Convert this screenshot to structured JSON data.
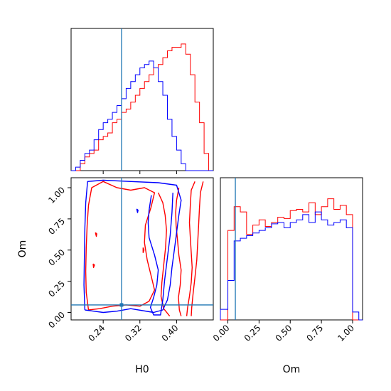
{
  "chart_data": [
    {
      "type": "histogram",
      "panel": "H0 marginal",
      "xlim": [
        0.17,
        0.48
      ],
      "truth": 0.28,
      "bin_edges": [
        0.17,
        0.18,
        0.19,
        0.2,
        0.21,
        0.22,
        0.23,
        0.24,
        0.25,
        0.26,
        0.27,
        0.28,
        0.29,
        0.3,
        0.31,
        0.32,
        0.33,
        0.34,
        0.35,
        0.36,
        0.37,
        0.38,
        0.39,
        0.4,
        0.41,
        0.42,
        0.43,
        0.44,
        0.45,
        0.46,
        0.47,
        0.48
      ],
      "series": [
        {
          "color": "#ff0000",
          "values": [
            0,
            0,
            2,
            4,
            5,
            6,
            9,
            10,
            11,
            14,
            15,
            17,
            18,
            20,
            22,
            24,
            26,
            28,
            30,
            31,
            33,
            35,
            36,
            36,
            37,
            34,
            28,
            20,
            14,
            5,
            0
          ]
        },
        {
          "color": "#0000ff",
          "values": [
            0,
            1,
            3,
            5,
            6,
            9,
            12,
            14,
            15,
            17,
            19,
            21,
            24,
            26,
            28,
            30,
            31,
            32,
            30,
            26,
            22,
            15,
            10,
            6,
            2,
            0,
            0,
            0,
            0,
            0,
            0
          ]
        }
      ]
    },
    {
      "type": "contour",
      "panel": "Om vs H0",
      "xlabel": "H0",
      "ylabel": "Om",
      "xlim": [
        0.17,
        0.48
      ],
      "ylim": [
        -0.06,
        1.08
      ],
      "xticks": [
        "0.24",
        "0.32",
        "0.40"
      ],
      "xtick_values": [
        0.24,
        0.32,
        0.4
      ],
      "yticks": [
        "0.00",
        "0.25",
        "0.50",
        "0.75",
        "1.00"
      ],
      "ytick_values": [
        0,
        0.25,
        0.5,
        0.75,
        1.0
      ],
      "truth": {
        "x": 0.28,
        "y": 0.06
      },
      "contours": [
        {
          "color": "#ff0000",
          "points": [
            [
              0.36,
              0.96
            ],
            [
              0.37,
              0.88
            ],
            [
              0.375,
              0.78
            ],
            [
              0.378,
              0.66
            ],
            [
              0.376,
              0.52
            ],
            [
              0.372,
              0.38
            ],
            [
              0.368,
              0.24
            ],
            [
              0.366,
              0.13
            ],
            [
              0.372,
              0.03
            ],
            [
              0.385,
              -0.03
            ]
          ]
        },
        {
          "color": "#ff0000",
          "points": [
            [
              0.405,
              1.0
            ],
            [
              0.4,
              0.9
            ],
            [
              0.398,
              0.8
            ],
            [
              0.399,
              0.7
            ],
            [
              0.402,
              0.58
            ],
            [
              0.405,
              0.46
            ],
            [
              0.41,
              0.34
            ],
            [
              0.408,
              0.22
            ],
            [
              0.404,
              0.12
            ],
            [
              0.406,
              0.02
            ],
            [
              0.41,
              -0.03
            ]
          ]
        },
        {
          "color": "#ff0000",
          "points": [
            [
              0.44,
              1.05
            ],
            [
              0.432,
              0.98
            ],
            [
              0.43,
              0.86
            ],
            [
              0.428,
              0.72
            ],
            [
              0.43,
              0.6
            ],
            [
              0.432,
              0.48
            ],
            [
              0.434,
              0.36
            ],
            [
              0.432,
              0.24
            ],
            [
              0.428,
              0.13
            ],
            [
              0.424,
              0.04
            ],
            [
              0.422,
              -0.03
            ]
          ]
        },
        {
          "color": "#ff0000",
          "points": [
            [
              0.458,
              1.05
            ],
            [
              0.452,
              0.96
            ],
            [
              0.45,
              0.84
            ],
            [
              0.448,
              0.7
            ],
            [
              0.446,
              0.56
            ],
            [
              0.444,
              0.42
            ],
            [
              0.44,
              0.28
            ],
            [
              0.436,
              0.15
            ],
            [
              0.433,
              0.04
            ],
            [
              0.432,
              -0.03
            ]
          ]
        },
        {
          "color": "#ff0000",
          "points": [
            [
              0.208,
              0.02
            ],
            [
              0.203,
              0.16
            ],
            [
              0.202,
              0.33
            ],
            [
              0.203,
              0.52
            ],
            [
              0.205,
              0.7
            ],
            [
              0.208,
              0.86
            ],
            [
              0.215,
              1.0
            ],
            [
              0.24,
              1.05
            ],
            [
              0.27,
              1.0
            ],
            [
              0.3,
              0.98
            ],
            [
              0.33,
              1.0
            ],
            [
              0.352,
              0.96
            ],
            [
              0.344,
              0.84
            ],
            [
              0.332,
              0.7
            ],
            [
              0.33,
              0.56
            ],
            [
              0.336,
              0.42
            ],
            [
              0.344,
              0.3
            ],
            [
              0.352,
              0.18
            ],
            [
              0.34,
              0.09
            ],
            [
              0.32,
              0.05
            ],
            [
              0.29,
              0.06
            ],
            [
              0.26,
              0.05
            ],
            [
              0.232,
              0.03
            ],
            [
              0.208,
              0.02
            ]
          ]
        },
        {
          "color": "#ff0000",
          "points": [
            [
              0.223,
              0.64
            ],
            [
              0.226,
              0.63
            ],
            [
              0.225,
              0.61
            ],
            [
              0.223,
              0.64
            ]
          ]
        },
        {
          "color": "#ff0000",
          "points": [
            [
              0.218,
              0.39
            ],
            [
              0.221,
              0.38
            ],
            [
              0.219,
              0.36
            ],
            [
              0.218,
              0.39
            ]
          ]
        },
        {
          "color": "#ff0000",
          "points": [
            [
              0.327,
              0.52
            ],
            [
              0.329,
              0.5
            ],
            [
              0.327,
              0.48
            ],
            [
              0.327,
              0.52
            ]
          ]
        },
        {
          "color": "#0000ff",
          "points": [
            [
              0.2,
              0.02
            ],
            [
              0.198,
              0.22
            ],
            [
              0.199,
              0.45
            ],
            [
              0.2,
              0.68
            ],
            [
              0.202,
              0.88
            ],
            [
              0.206,
              1.05
            ],
            [
              0.24,
              1.06
            ],
            [
              0.3,
              1.05
            ],
            [
              0.36,
              1.04
            ],
            [
              0.4,
              1.02
            ],
            [
              0.41,
              0.9
            ],
            [
              0.405,
              0.78
            ],
            [
              0.4,
              0.64
            ],
            [
              0.395,
              0.5
            ],
            [
              0.39,
              0.36
            ],
            [
              0.386,
              0.22
            ],
            [
              0.38,
              0.1
            ],
            [
              0.37,
              0.02
            ],
            [
              0.35,
              0.0
            ],
            [
              0.3,
              0.03
            ],
            [
              0.27,
              0.01
            ],
            [
              0.24,
              0.0
            ],
            [
              0.2,
              0.02
            ]
          ]
        },
        {
          "color": "#0000ff",
          "points": [
            [
              0.345,
              0.94
            ],
            [
              0.34,
              0.82
            ],
            [
              0.338,
              0.72
            ],
            [
              0.34,
              0.6
            ],
            [
              0.352,
              0.46
            ],
            [
              0.36,
              0.34
            ],
            [
              0.357,
              0.22
            ],
            [
              0.35,
              0.12
            ],
            [
              0.343,
              0.04
            ],
            [
              0.35,
              -0.02
            ],
            [
              0.365,
              -0.02
            ],
            [
              0.37,
              0.1
            ],
            [
              0.374,
              0.26
            ],
            [
              0.38,
              0.44
            ],
            [
              0.386,
              0.62
            ],
            [
              0.39,
              0.8
            ],
            [
              0.392,
              0.96
            ]
          ]
        },
        {
          "color": "#0000ff",
          "points": [
            [
              0.313,
              0.83
            ],
            [
              0.316,
              0.82
            ],
            [
              0.315,
              0.8
            ],
            [
              0.313,
              0.83
            ]
          ]
        }
      ]
    },
    {
      "type": "histogram",
      "panel": "Om marginal",
      "xlabel": "Om",
      "xlim": [
        -0.06,
        1.08
      ],
      "xticks": [
        "0.00",
        "0.25",
        "0.50",
        "0.75",
        "1.00"
      ],
      "xtick_values": [
        0,
        0.25,
        0.5,
        0.75,
        1.0
      ],
      "truth": 0.06,
      "bin_edges": [
        -0.06,
        0.0,
        0.05,
        0.1,
        0.15,
        0.2,
        0.25,
        0.3,
        0.35,
        0.4,
        0.45,
        0.5,
        0.55,
        0.6,
        0.65,
        0.7,
        0.75,
        0.8,
        0.85,
        0.9,
        0.95,
        1.0,
        1.05,
        1.08
      ],
      "series": [
        {
          "color": "#ff0000",
          "values": [
            0,
            0.68,
            0.86,
            0.82,
            0.65,
            0.72,
            0.76,
            0.71,
            0.74,
            0.78,
            0.77,
            0.83,
            0.84,
            0.82,
            0.89,
            0.8,
            0.86,
            0.92,
            0.84,
            0.87,
            0.8,
            0,
            0
          ]
        },
        {
          "color": "#0000ff",
          "values": [
            0.08,
            0.3,
            0.6,
            0.62,
            0.64,
            0.66,
            0.68,
            0.7,
            0.73,
            0.74,
            0.7,
            0.74,
            0.76,
            0.8,
            0.74,
            0.82,
            0.76,
            0.72,
            0.74,
            0.76,
            0.7,
            0.06,
            0
          ]
        }
      ]
    }
  ]
}
